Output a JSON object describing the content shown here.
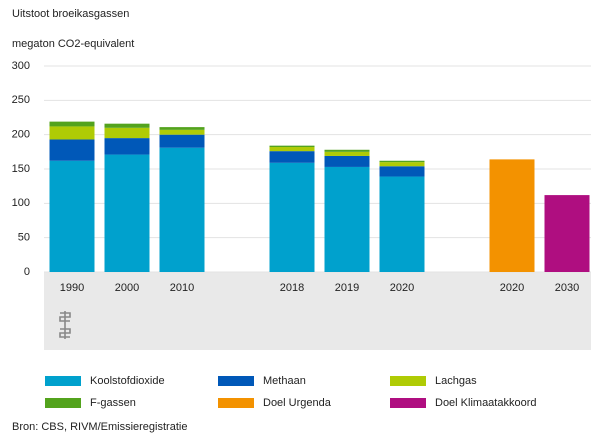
{
  "chart_data": {
    "type": "stacked-bar",
    "title": "Uitstoot broeikasgassen",
    "subtitle": "megaton CO2-equivalent",
    "source": "Bron: CBS, RIVM/Emissieregistratie",
    "categories": [
      "1990",
      "2000",
      "2010",
      null,
      "2018",
      "2019",
      "2020",
      null,
      "2020",
      "2030"
    ],
    "series": [
      {
        "name": "Koolstofdioxide",
        "color": "#00a1cd",
        "values": [
          162,
          171,
          181,
          null,
          159,
          153,
          139,
          null,
          null,
          null
        ]
      },
      {
        "name": "Methaan",
        "color": "#0058b8",
        "values": [
          31,
          24,
          19,
          null,
          17,
          16,
          15,
          null,
          null,
          null
        ]
      },
      {
        "name": "Lachgas",
        "color": "#afcb05",
        "values": [
          19,
          15,
          7,
          null,
          6,
          6,
          6,
          null,
          null,
          null
        ]
      },
      {
        "name": "F-gassen",
        "color": "#53a31d",
        "values": [
          7,
          6,
          4,
          null,
          2,
          3,
          2,
          null,
          null,
          null
        ]
      },
      {
        "name": "Doel Urgenda",
        "color": "#f39200",
        "values": [
          null,
          null,
          null,
          null,
          null,
          null,
          null,
          null,
          164,
          null
        ]
      },
      {
        "name": "Doel Klimaatakkoord",
        "color": "#af0e80",
        "values": [
          null,
          null,
          null,
          null,
          null,
          null,
          null,
          null,
          null,
          112
        ]
      }
    ],
    "ylim": [
      0,
      300
    ],
    "yticks": [
      0,
      50,
      100,
      150,
      200,
      250,
      300
    ],
    "grid": true
  }
}
